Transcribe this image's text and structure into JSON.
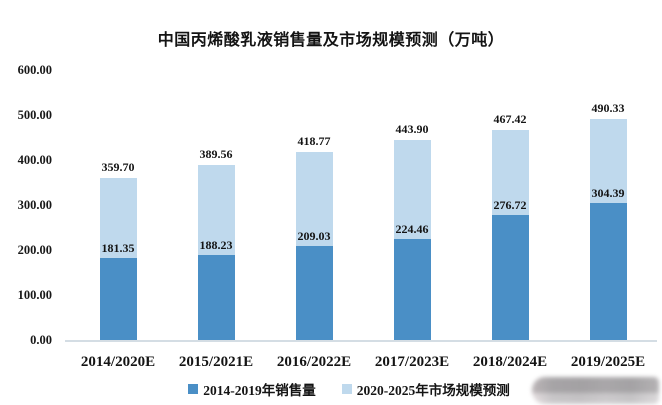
{
  "title": "中国丙烯酸乳液销售量及市场规模预测（万吨）",
  "chart_data": {
    "type": "bar",
    "stacked": true,
    "title": "中国丙烯酸乳液销售量及市场规模预测（万吨）",
    "categories": [
      "2014/2020E",
      "2015/2021E",
      "2016/2022E",
      "2017/2023E",
      "2018/2024E",
      "2019/2025E"
    ],
    "series": [
      {
        "name": "2014-2019年销售量",
        "color": "#4A8FC6",
        "values": [
          181.35,
          188.23,
          209.03,
          224.46,
          276.72,
          304.39
        ]
      },
      {
        "name": "2020-2025年市场规模预测",
        "color": "#BFD9ED",
        "values": [
          178.35,
          201.33,
          209.74,
          219.44,
          190.7,
          185.94
        ]
      }
    ],
    "totals": [
      359.7,
      389.56,
      418.77,
      443.9,
      467.42,
      490.33
    ],
    "bar_labels": {
      "sales": [
        "181.35",
        "188.23",
        "209.03",
        "224.46",
        "276.72",
        "304.39"
      ],
      "totals": [
        "359.70",
        "389.56",
        "418.77",
        "443.90",
        "467.42",
        "490.33"
      ]
    },
    "xlabel": "",
    "ylabel": "",
    "ylim": [
      0,
      600
    ],
    "yticks": [
      "600.00",
      "500.00",
      "400.00",
      "300.00",
      "200.00",
      "100.00",
      "0.00"
    ],
    "grid": false,
    "legend_position": "bottom",
    "accent_colors": {
      "sales": "#4A8FC6",
      "forecast": "#BFD9ED",
      "axis_line": "#d4dde4"
    }
  }
}
